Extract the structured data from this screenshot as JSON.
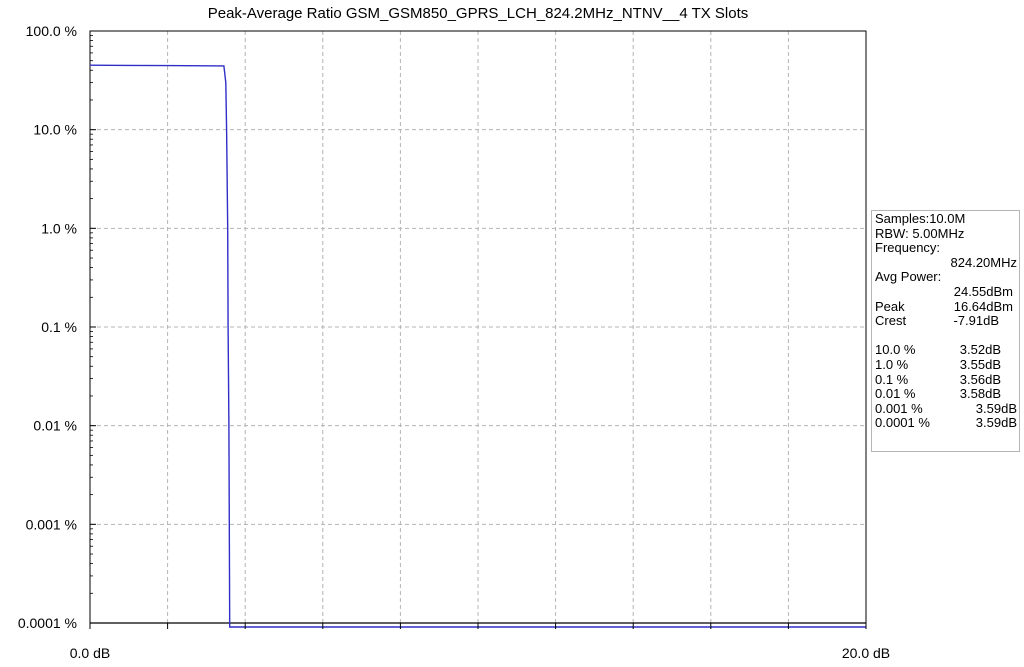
{
  "chart_data": {
    "type": "line",
    "title": "Peak-Average Ratio GSM_GSM850_GPRS_LCH_824.2MHz_NTNV__4 TX Slots",
    "xlabel": "",
    "ylabel": "",
    "x_scale": "linear",
    "y_scale": "log",
    "xlim": [
      0,
      20
    ],
    "ylim": [
      0.0001,
      100
    ],
    "x_tick_labels": [
      "0.0 dB",
      "20.0 dB"
    ],
    "y_tick_labels": [
      "100.0 %",
      "10.0 %",
      "1.0 %",
      "0.1 %",
      "0.01 %",
      "0.001 %",
      "0.0001 %"
    ],
    "y_ticks": [
      100,
      10,
      1,
      0.1,
      0.01,
      0.001,
      0.0001
    ],
    "x_ticks": [
      0,
      2,
      4,
      6,
      8,
      10,
      12,
      14,
      16,
      18,
      20
    ],
    "grid": true,
    "series": [
      {
        "color": "#2f2fc8",
        "x": [
          0,
          1,
          2,
          3,
          3.45,
          3.5,
          3.52,
          3.55,
          3.56,
          3.58,
          3.59,
          3.6,
          20
        ],
        "y": [
          45,
          44.8,
          44.6,
          44.4,
          44.3,
          30,
          10,
          1,
          0.1,
          0.01,
          0.001,
          9e-05,
          9e-05
        ]
      }
    ],
    "reference_line": {
      "y": 0.0001,
      "color": "#000000"
    }
  },
  "info_box": {
    "samples": "Samples:10.0M",
    "rbw": "RBW: 5.00MHz",
    "frequency_label": "Frequency:",
    "frequency_value": "824.20MHz",
    "avg_power_label": "Avg Power:",
    "avg_power_value": "24.55dBm",
    "peak_label": "Peak",
    "peak_value": "16.64dBm",
    "crest_label": "Crest",
    "crest_value": "-7.91dB",
    "ccdf": [
      {
        "pct": "10.0 %",
        "db": "3.52dB"
      },
      {
        "pct": "1.0 %",
        "db": "3.55dB"
      },
      {
        "pct": "0.1 %",
        "db": "3.56dB"
      },
      {
        "pct": "0.01 %",
        "db": "3.58dB"
      },
      {
        "pct": "0.001 %",
        "db": "3.59dB"
      },
      {
        "pct": "0.0001 %",
        "db": "3.59dB"
      }
    ]
  }
}
